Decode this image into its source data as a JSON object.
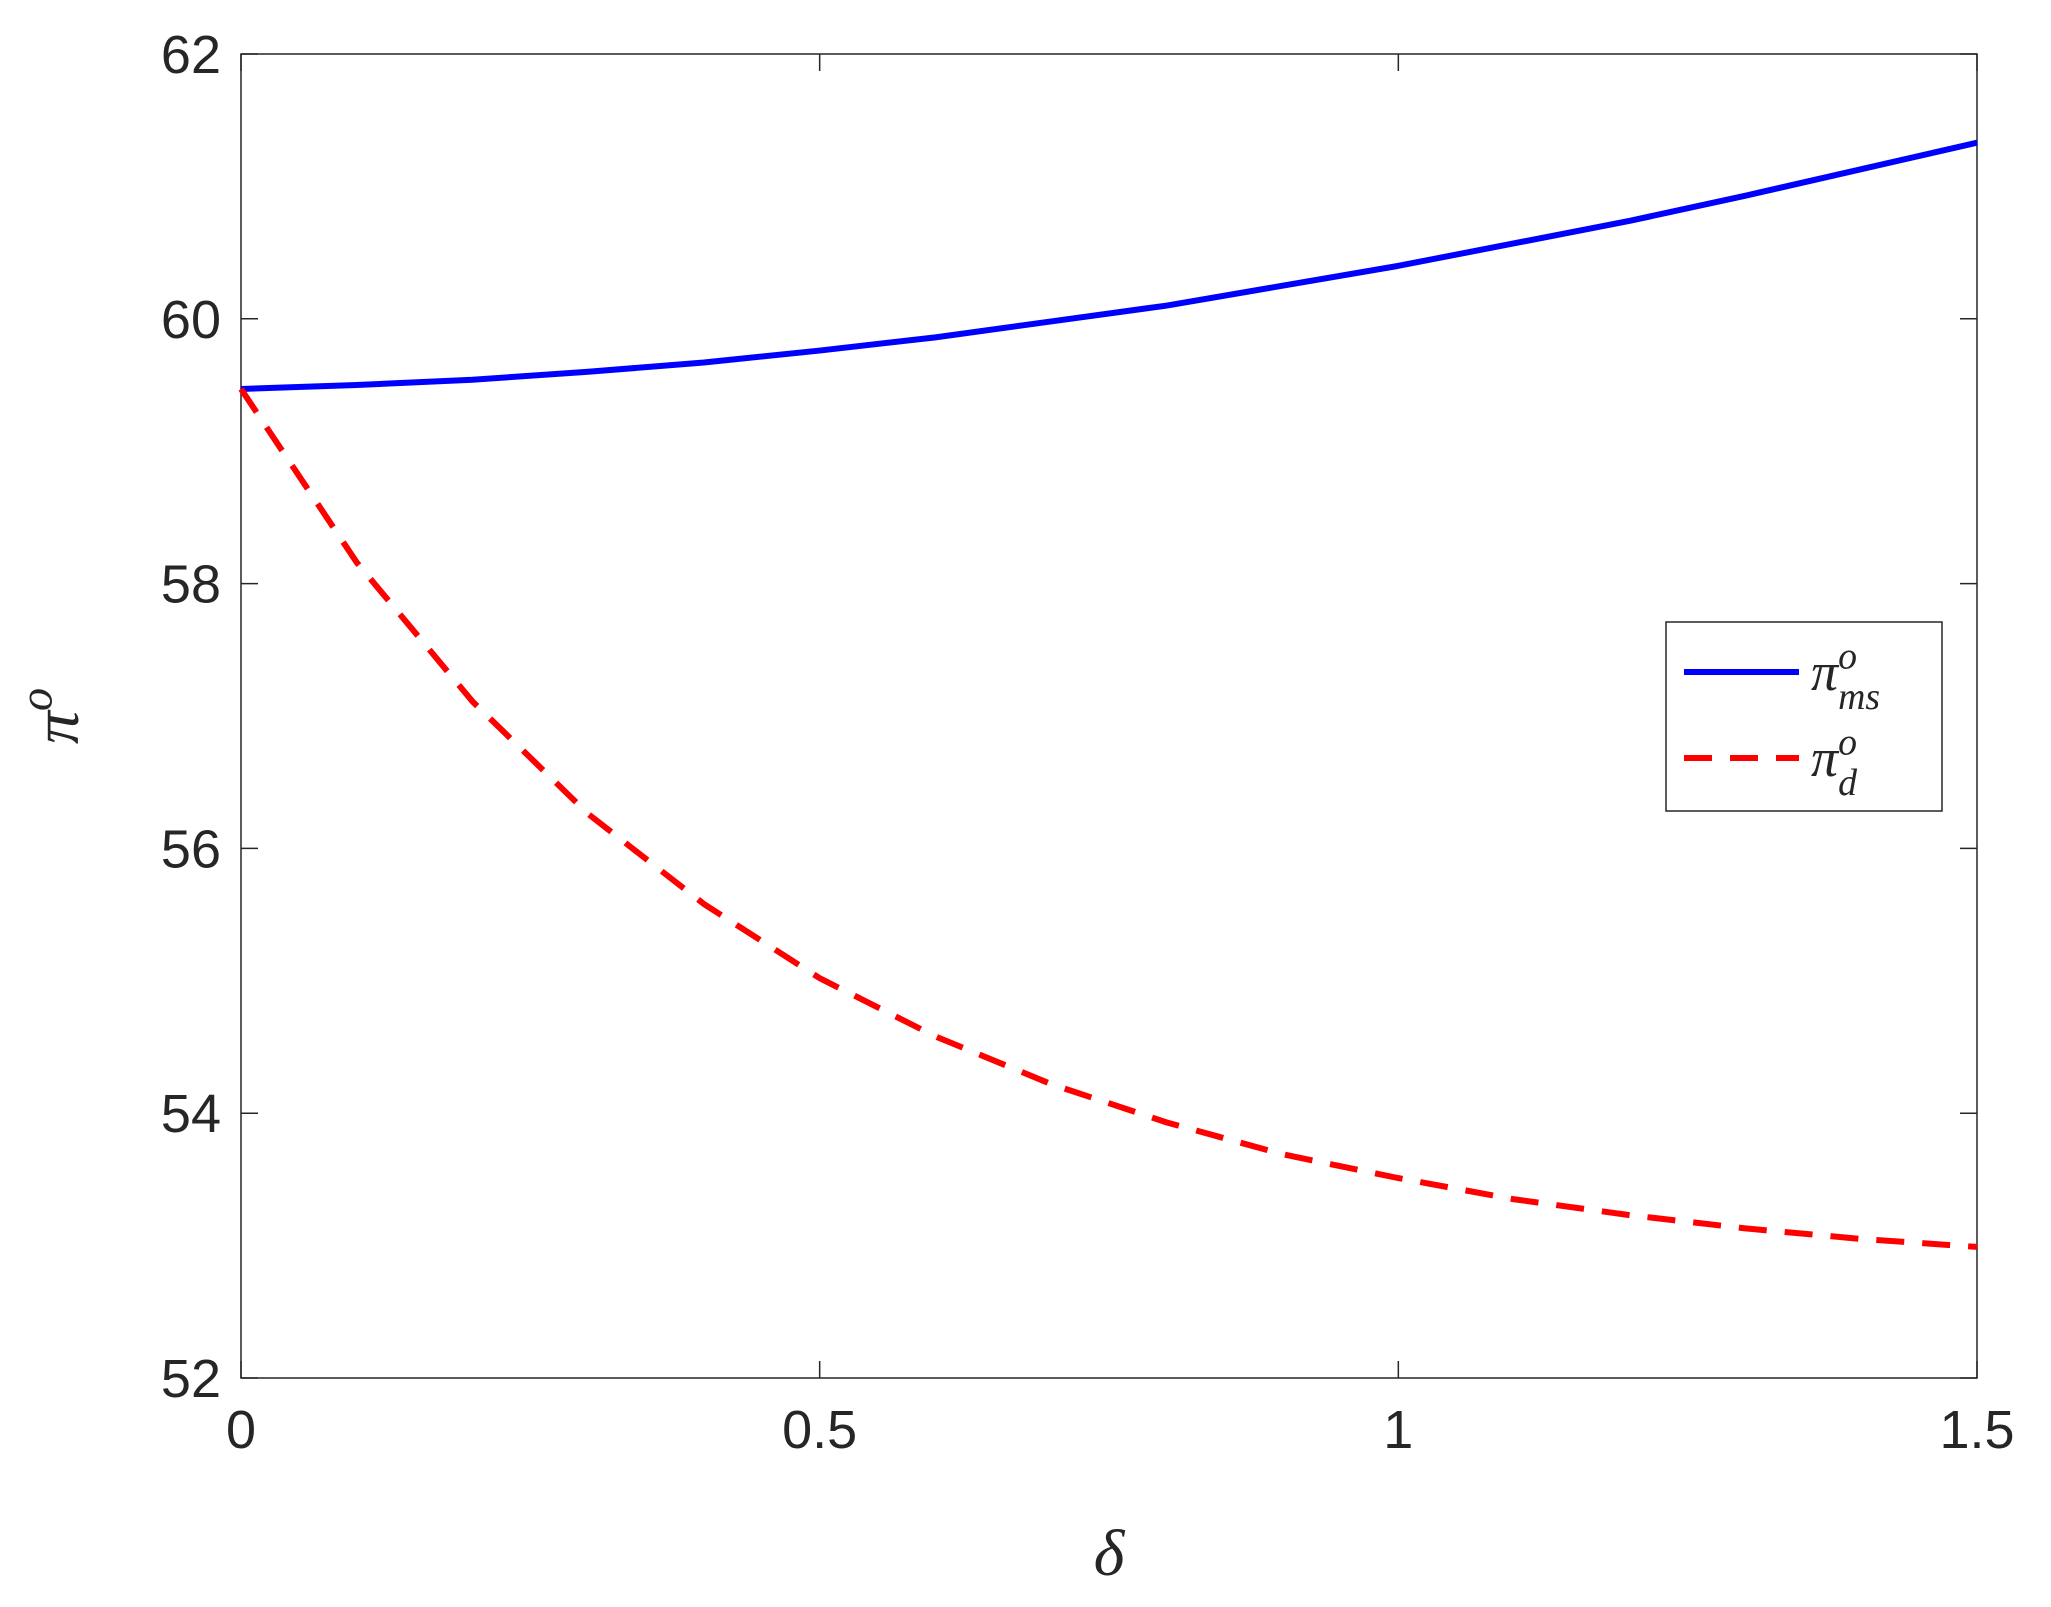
{
  "chart_data": {
    "type": "line",
    "xlabel": {
      "base": "δ"
    },
    "ylabel": {
      "base": "π",
      "sup": "o"
    },
    "x": [
      0,
      0.1,
      0.2,
      0.3,
      0.4,
      0.5,
      0.6,
      0.7,
      0.8,
      0.9,
      1.0,
      1.1,
      1.2,
      1.3,
      1.4,
      1.5
    ],
    "series": [
      {
        "name": {
          "base": "π",
          "sup": "o",
          "sub": "ms"
        },
        "color": "#0000ff",
        "dashed": false,
        "values": [
          59.47,
          59.5,
          59.54,
          59.6,
          59.67,
          59.76,
          59.86,
          59.98,
          60.1,
          60.25,
          60.4,
          60.57,
          60.74,
          60.93,
          61.13,
          61.33
        ]
      },
      {
        "name": {
          "base": "π",
          "sup": "o",
          "sub": "d"
        },
        "color": "#ff0000",
        "dashed": true,
        "values": [
          59.47,
          58.16,
          57.11,
          56.26,
          55.58,
          55.02,
          54.58,
          54.22,
          53.93,
          53.69,
          53.51,
          53.35,
          53.23,
          53.13,
          53.05,
          52.99
        ]
      }
    ],
    "xlim": [
      0,
      1.5
    ],
    "xticks": [
      0,
      0.5,
      1,
      1.5
    ],
    "ylim": [
      52,
      62
    ],
    "yticks": [
      52,
      54,
      56,
      58,
      60,
      62
    ],
    "grid": false,
    "legend": "right"
  }
}
